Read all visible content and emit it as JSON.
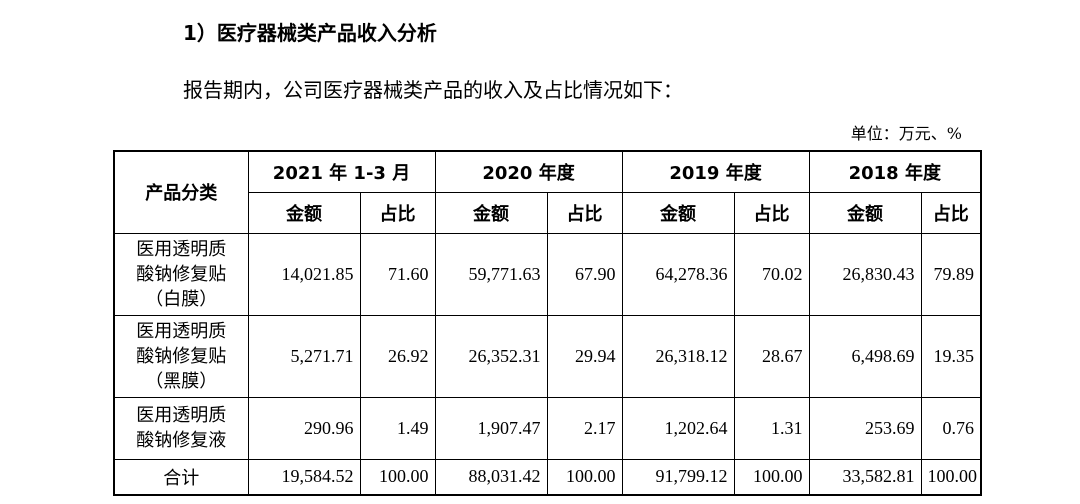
{
  "heading": "1）医疗器械类产品收入分析",
  "intro": "报告期内，公司医疗器械类产品的收入及占比情况如下：",
  "unit": "单位：万元、%",
  "table": {
    "category_header": "产品分类",
    "periods": [
      "2021 年 1-3 月",
      "2020 年度",
      "2019 年度",
      "2018 年度"
    ],
    "amount_label": "金额",
    "ratio_label": "占比",
    "rows": [
      {
        "category_lines": [
          "医用透明质",
          "酸钠修复贴",
          "（白膜）"
        ],
        "values": [
          "14,021.85",
          "71.60",
          "59,771.63",
          "67.90",
          "64,278.36",
          "70.02",
          "26,830.43",
          "79.89"
        ]
      },
      {
        "category_lines": [
          "医用透明质",
          "酸钠修复贴",
          "（黑膜）"
        ],
        "values": [
          "5,271.71",
          "26.92",
          "26,352.31",
          "29.94",
          "26,318.12",
          "28.67",
          "6,498.69",
          "19.35"
        ]
      },
      {
        "category_lines": [
          "医用透明质",
          "酸钠修复液"
        ],
        "values": [
          "290.96",
          "1.49",
          "1,907.47",
          "2.17",
          "1,202.64",
          "1.31",
          "253.69",
          "0.76"
        ]
      }
    ],
    "total": {
      "label": "合计",
      "values": [
        "19,584.52",
        "100.00",
        "88,031.42",
        "100.00",
        "91,799.12",
        "100.00",
        "33,582.81",
        "100.00"
      ]
    }
  }
}
